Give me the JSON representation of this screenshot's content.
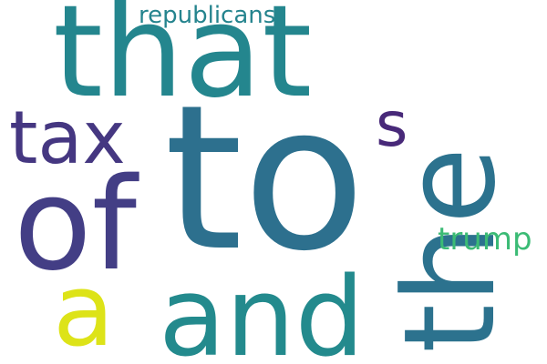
{
  "words": [
    {
      "id": "that",
      "text": "that",
      "color": "#24868e"
    },
    {
      "id": "the",
      "text": "the",
      "color": "#2c728e"
    },
    {
      "id": "to",
      "text": "to",
      "color": "#2d708e"
    },
    {
      "id": "tax",
      "text": "tax",
      "color": "#453781"
    },
    {
      "id": "of",
      "text": "of",
      "color": "#433e85"
    },
    {
      "id": "s",
      "text": "s",
      "color": "#482979"
    },
    {
      "id": "trump",
      "text": "trump",
      "color": "#3bbb75"
    },
    {
      "id": "a",
      "text": "a",
      "color": "#dde318"
    },
    {
      "id": "and",
      "text": "and",
      "color": "#238a8d"
    },
    {
      "id": "republicans",
      "text": "republicans",
      "color": "#25848e"
    }
  ]
}
